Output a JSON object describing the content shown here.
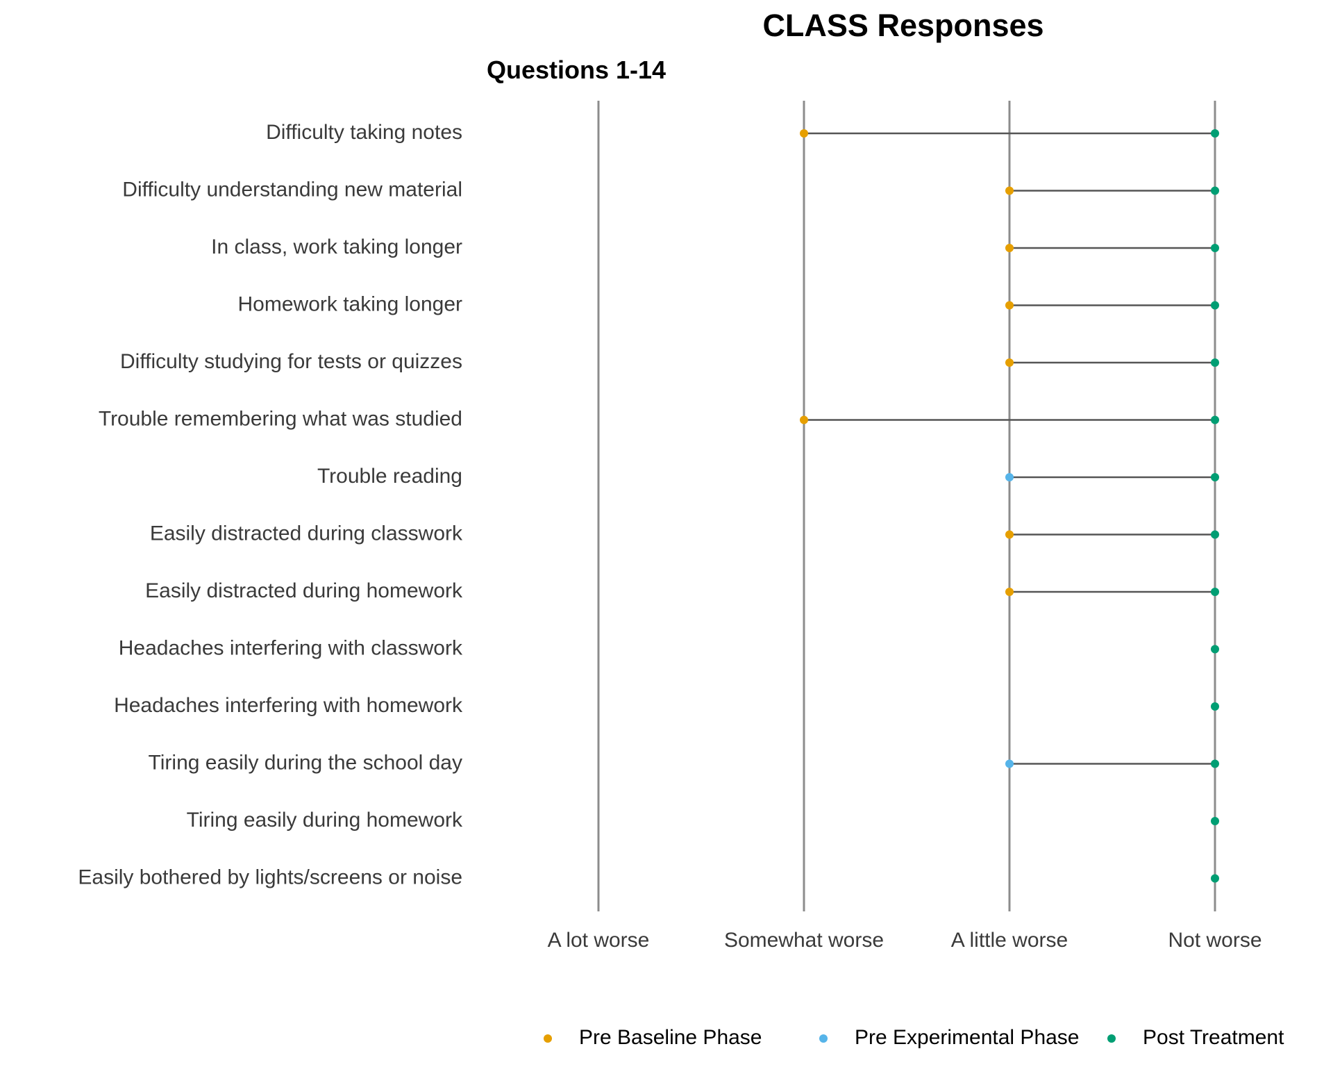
{
  "chart_data": {
    "type": "dumbbell",
    "title": "CLASS Responses",
    "subtitle": "Questions 1-14",
    "x_categories": [
      "A lot worse",
      "Somewhat worse",
      "A little worse",
      "Not worse"
    ],
    "legend": {
      "position": "bottom"
    },
    "series": [
      {
        "name": "Pre Baseline Phase",
        "color": "#E69F00"
      },
      {
        "name": "Pre Experimental Phase",
        "color": "#56B4E9"
      },
      {
        "name": "Post Treatment",
        "color": "#009E73"
      }
    ],
    "connector_color": "#555555",
    "gridline_color": "#8c8c8c",
    "questions": [
      {
        "label": "Difficulty taking notes",
        "pre": "Somewhat worse",
        "pre_phase": "Pre Baseline Phase",
        "post": "Not worse"
      },
      {
        "label": "Difficulty understanding new material",
        "pre": "A little worse",
        "pre_phase": "Pre Baseline Phase",
        "post": "Not worse"
      },
      {
        "label": "In class, work taking longer",
        "pre": "A little worse",
        "pre_phase": "Pre Baseline Phase",
        "post": "Not worse"
      },
      {
        "label": "Homework taking longer",
        "pre": "A little worse",
        "pre_phase": "Pre Baseline Phase",
        "post": "Not worse"
      },
      {
        "label": "Difficulty studying for tests or quizzes",
        "pre": "A little worse",
        "pre_phase": "Pre Baseline Phase",
        "post": "Not worse"
      },
      {
        "label": "Trouble remembering what was studied",
        "pre": "Somewhat worse",
        "pre_phase": "Pre Baseline Phase",
        "post": "Not worse"
      },
      {
        "label": "Trouble reading",
        "pre": "A little worse",
        "pre_phase": "Pre Experimental Phase",
        "post": "Not worse"
      },
      {
        "label": "Easily distracted during classwork",
        "pre": "A little worse",
        "pre_phase": "Pre Baseline Phase",
        "post": "Not worse"
      },
      {
        "label": "Easily distracted during homework",
        "pre": "A little worse",
        "pre_phase": "Pre Baseline Phase",
        "post": "Not worse"
      },
      {
        "label": "Headaches interfering with classwork",
        "pre": null,
        "pre_phase": null,
        "post": "Not worse"
      },
      {
        "label": "Headaches interfering with homework",
        "pre": null,
        "pre_phase": null,
        "post": "Not worse"
      },
      {
        "label": "Tiring easily during the school day",
        "pre": "A little worse",
        "pre_phase": "Pre Experimental Phase",
        "post": "Not worse"
      },
      {
        "label": "Tiring easily during homework",
        "pre": null,
        "pre_phase": null,
        "post": "Not worse"
      },
      {
        "label": "Easily bothered by lights/screens or noise",
        "pre": null,
        "pre_phase": null,
        "post": "Not worse"
      }
    ]
  }
}
